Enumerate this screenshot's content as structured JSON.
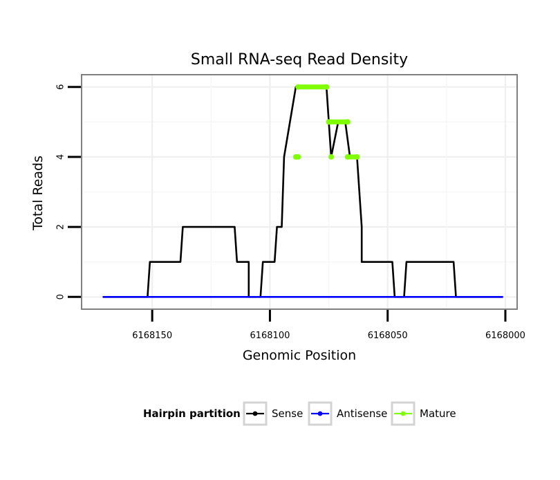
{
  "chart_data": {
    "type": "line",
    "title": "Small RNA-seq Read Density",
    "xlabel": "Genomic Position",
    "ylabel": "Total Reads",
    "x_reversed": true,
    "xlim": [
      6168180,
      6167995
    ],
    "ylim": [
      -0.35,
      6.35
    ],
    "x_ticks": [
      6168150,
      6168100,
      6168050,
      6168000
    ],
    "x_tick_labels": [
      "6168150",
      "6168100",
      "6168050",
      "6168000"
    ],
    "y_ticks": [
      0,
      2,
      4,
      6
    ],
    "y_tick_labels": [
      "0",
      "2",
      "4",
      "6"
    ],
    "grid": true,
    "legend": {
      "title": "Hairpin partition",
      "placement": "bottom",
      "entries": [
        "Sense",
        "Antisense",
        "Mature"
      ]
    },
    "colors": {
      "Sense": "#000000",
      "Antisense": "#0000ff",
      "Mature": "#7fff00"
    },
    "series": [
      {
        "name": "Sense",
        "style": "line",
        "x": [
          6168171,
          6168152,
          6168151,
          6168138,
          6168137,
          6168115,
          6168114,
          6168109,
          6168109,
          6168104,
          6168103,
          6168098,
          6168097,
          6168095,
          6168094,
          6168089,
          6168087,
          6168087,
          6168076,
          6168074,
          6168071,
          6168068,
          6168066,
          6168063,
          6168061,
          6168061,
          6168048,
          6168047,
          6168043,
          6168042,
          6168022,
          6168021,
          6168001
        ],
        "y": [
          0,
          0,
          1,
          1,
          2,
          2,
          1,
          1,
          0,
          0,
          1,
          1,
          2,
          2,
          4,
          6,
          6,
          6,
          6,
          4,
          5,
          5,
          4,
          4,
          2,
          1,
          1,
          0,
          0,
          1,
          1,
          0,
          0
        ]
      },
      {
        "name": "Antisense",
        "style": "line",
        "x": [
          6168171,
          6168001
        ],
        "y": [
          0,
          0
        ]
      },
      {
        "name": "Mature",
        "style": "line+points",
        "segments": [
          {
            "x": [
              6168089,
              6168088
            ],
            "y": [
              4,
              4
            ]
          },
          {
            "x": [
              6168088,
              6168076
            ],
            "y": [
              6,
              6
            ]
          },
          {
            "x": [
              6168074
            ],
            "y": [
              4
            ]
          },
          {
            "x": [
              6168075,
              6168067
            ],
            "y": [
              5,
              5
            ]
          },
          {
            "x": [
              6168067,
              6168063
            ],
            "y": [
              4,
              4
            ]
          }
        ]
      }
    ]
  }
}
